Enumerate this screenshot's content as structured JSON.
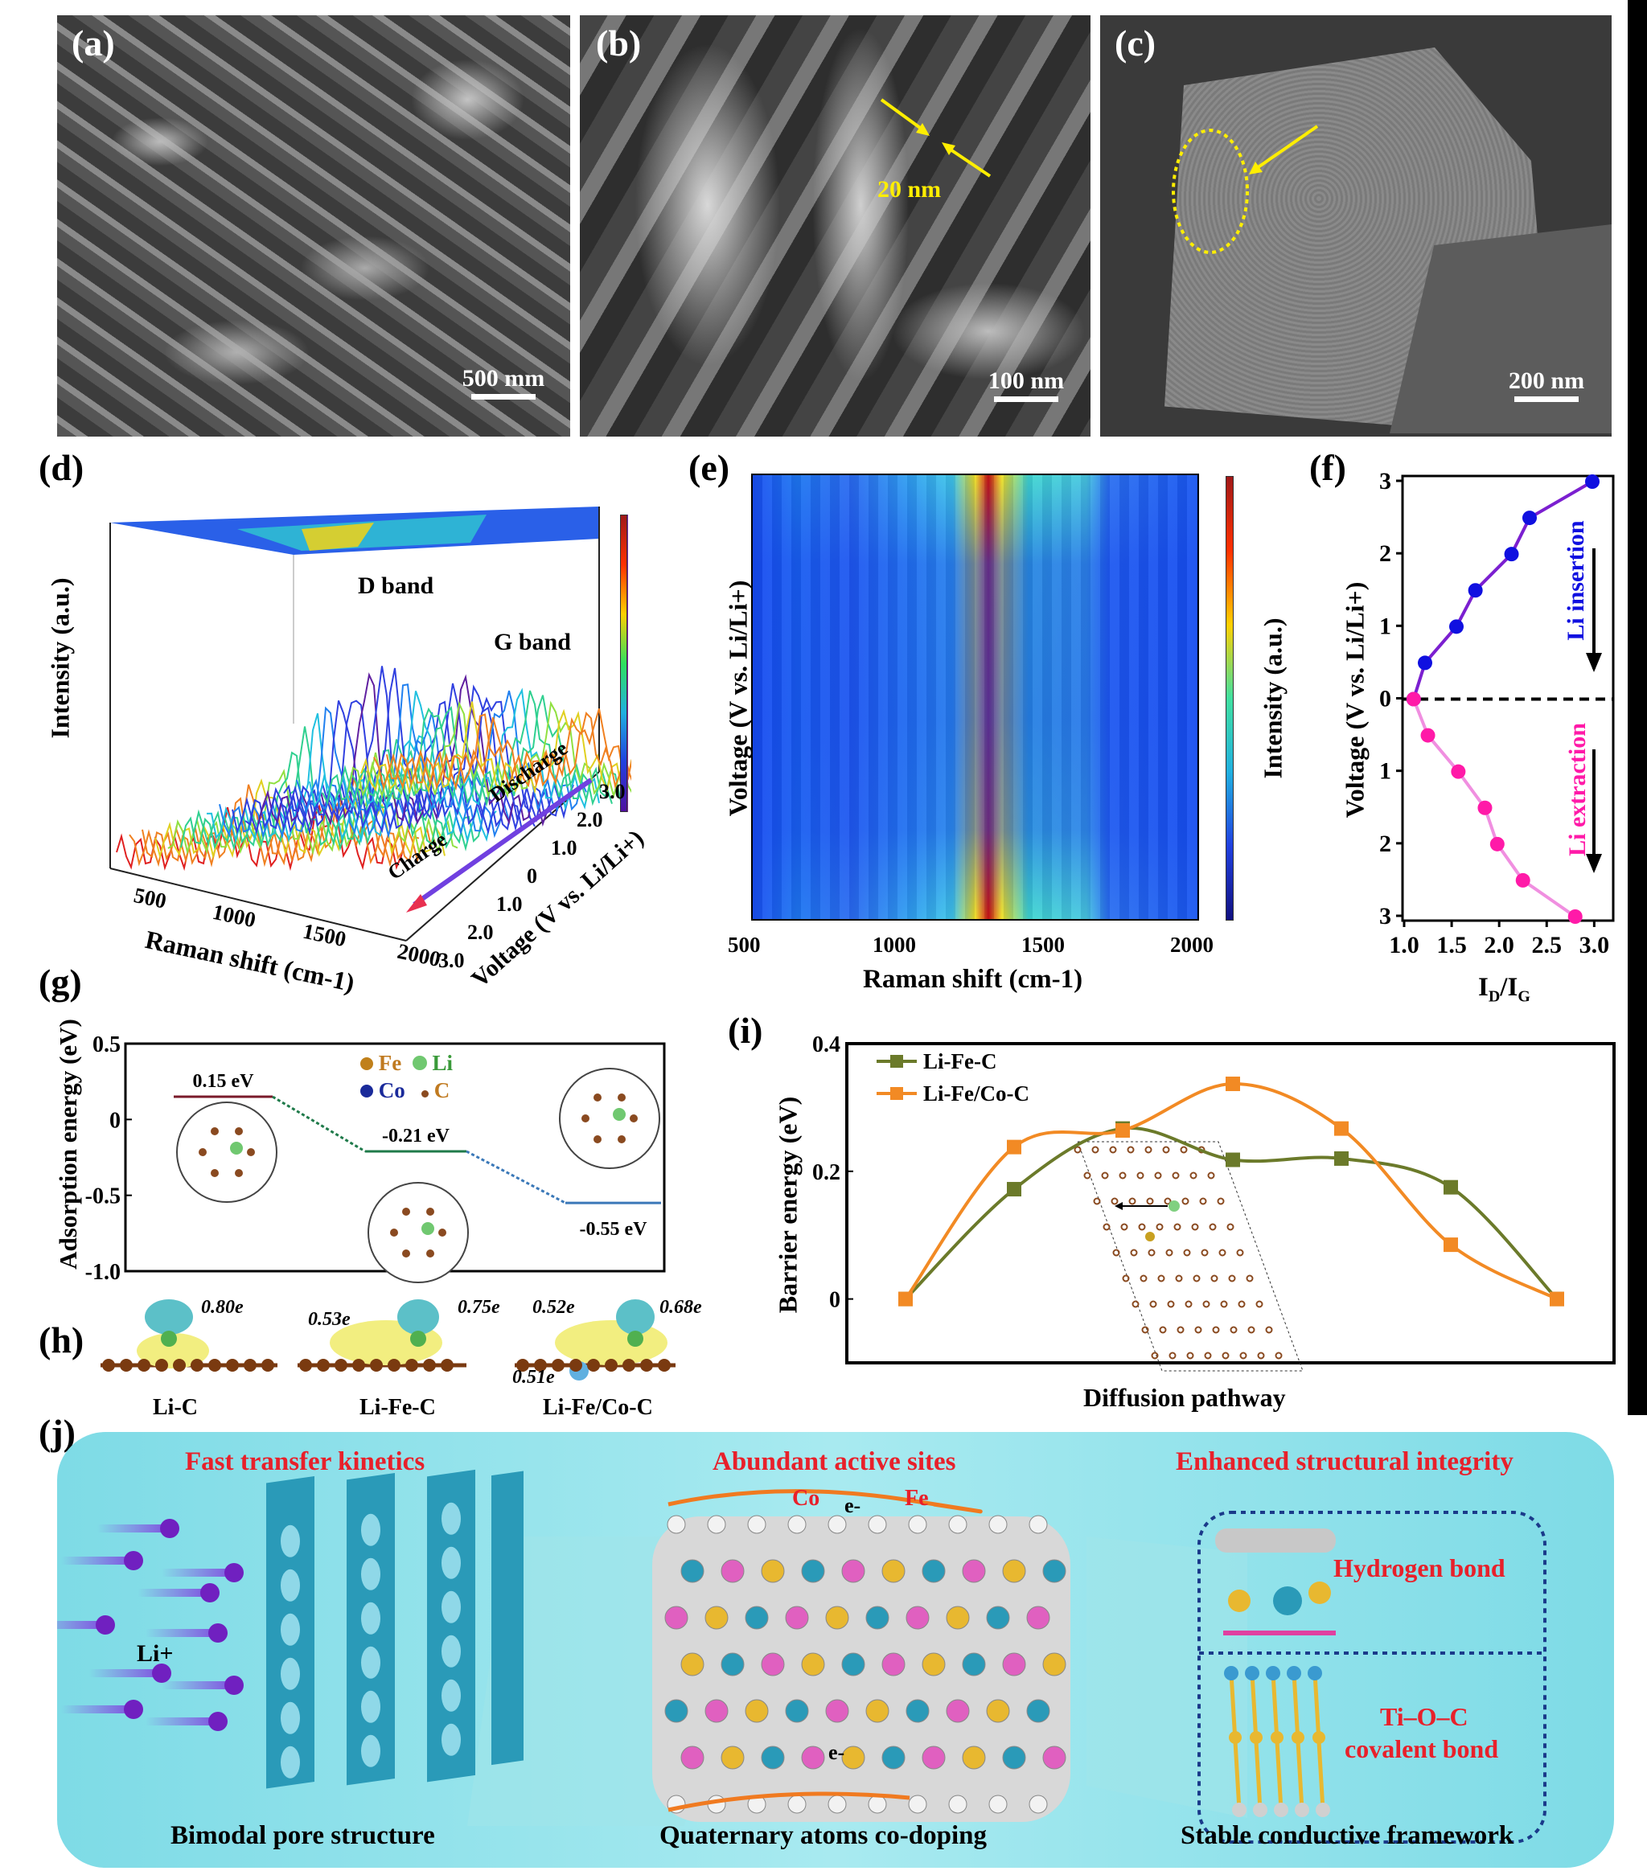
{
  "panels": {
    "a": {
      "label": "(a)",
      "scale_bar": "500 mm"
    },
    "b": {
      "label": "(b)",
      "scale_bar": "100 nm",
      "annotation": "20 nm"
    },
    "c": {
      "label": "(c)",
      "scale_bar": "200 nm"
    },
    "d": {
      "label": "(d)",
      "zlabel": "Intensity (a.u.)",
      "xlabel": "Raman shift (cm-1)",
      "ylabel": "Voltage (V vs. Li/Li+)",
      "xticks": [
        "500",
        "1000",
        "1500",
        "2000"
      ],
      "yticks": [
        "3.0",
        "2.0",
        "1.0",
        "0",
        "1.0",
        "2.0",
        "3.0"
      ],
      "d_band": "D band",
      "g_band": "G band",
      "charge": "Charge",
      "discharge": "Discharge"
    },
    "e": {
      "label": "(e)",
      "xlabel": "Raman shift (cm-1)",
      "ylabel": "Voltage (V vs. Li/Li+)",
      "colorbar_label": "Intensity (a.u.)",
      "xticks": [
        "500",
        "1000",
        "1500",
        "2000"
      ]
    },
    "f": {
      "label": "(f)",
      "insertion": "Li insertion",
      "extraction": "Li extraction"
    },
    "g": {
      "label": "(g)",
      "legend": {
        "fe": "Fe",
        "li": "Li",
        "co": "Co",
        "c": "C"
      }
    },
    "h": {
      "label": "(h)",
      "items": [
        {
          "name": "Li-C",
          "charges": [
            "0.80e"
          ]
        },
        {
          "name": "Li-Fe-C",
          "charges": [
            "0.53e",
            "0.75e"
          ]
        },
        {
          "name": "Li-Fe/Co-C",
          "charges": [
            "0.52e",
            "0.68e",
            "0.51e"
          ]
        }
      ]
    },
    "i": {
      "label": "(i)"
    },
    "j": {
      "label": "(j)",
      "headings": [
        "Fast transfer kinetics",
        "Abundant active sites",
        "Enhanced structural integrity"
      ],
      "captions": [
        "Bimodal pore structure",
        "Quaternary atoms co-doping",
        "Stable conductive framework"
      ],
      "li_ion": "Li+",
      "co": "Co",
      "fe": "Fe",
      "electron_top": "e-",
      "electron_bottom": "e-",
      "hydrogen_bond": "Hydrogen bond",
      "covalent_bond_1": "Ti–O–C",
      "covalent_bond_2": "covalent bond"
    }
  },
  "colors": {
    "insertion": "#1010e0",
    "insertion_line": "#7b1fd0",
    "extraction": "#ff1aa8",
    "extraction_line": "#f08fe0",
    "li_fe_c": "#6b7a2a",
    "li_fe_co_c": "#f28a24",
    "banner": "#86e0e8",
    "heading_red": "#e8202a"
  },
  "chart_data": [
    {
      "id": "f",
      "type": "line",
      "xlabel": "ID/IG",
      "ylabel": "Voltage (V vs. Li/Li+)",
      "xlim": [
        1.0,
        3.2
      ],
      "ylim": [
        3,
        -3
      ],
      "xticks": [
        "1.0",
        "1.5",
        "2.0",
        "2.5",
        "3.0"
      ],
      "yticks": [
        "3",
        "2",
        "1",
        "0",
        "1",
        "2",
        "3"
      ],
      "series": [
        {
          "name": "Li insertion",
          "x": [
            2.98,
            2.32,
            2.13,
            1.75,
            1.55,
            1.22,
            1.1
          ],
          "y": [
            3,
            2.5,
            2,
            1.5,
            1,
            0.5,
            0
          ]
        },
        {
          "name": "Li extraction",
          "x": [
            1.1,
            1.25,
            1.57,
            1.85,
            1.98,
            2.25,
            2.8
          ],
          "y": [
            0,
            0.5,
            1,
            1.5,
            2,
            2.5,
            3
          ]
        }
      ]
    },
    {
      "id": "g",
      "type": "line",
      "ylabel": "Adsorption energy (eV)",
      "ylim": [
        -1.0,
        0.5
      ],
      "yticks": [
        "0.5",
        "0",
        "-0.5",
        "-1.0"
      ],
      "levels": [
        {
          "name": "Li-C",
          "value": 0.15,
          "label": "0.15 eV",
          "color": "#7a1a2a"
        },
        {
          "name": "Li-Fe-C",
          "value": -0.21,
          "label": "-0.21 eV",
          "color": "#1f7a4a"
        },
        {
          "name": "Li-Fe/Co-C",
          "value": -0.55,
          "label": "-0.55 eV",
          "color": "#3a78b8"
        }
      ]
    },
    {
      "id": "i",
      "type": "line",
      "xlabel": "Diffusion pathway",
      "ylabel": "Barrier energy (eV)",
      "ylim": [
        -0.1,
        0.4
      ],
      "yticks": [
        "0.4",
        "0.2",
        "0"
      ],
      "x": [
        1,
        2,
        3,
        4,
        5,
        6,
        7
      ],
      "series": [
        {
          "name": "Li-Fe-C",
          "values": [
            0,
            0.172,
            0.267,
            0.218,
            0.22,
            0.175,
            0
          ]
        },
        {
          "name": "Li-Fe/Co-C",
          "values": [
            0,
            0.238,
            0.264,
            0.337,
            0.267,
            0.085,
            0
          ]
        }
      ]
    }
  ]
}
